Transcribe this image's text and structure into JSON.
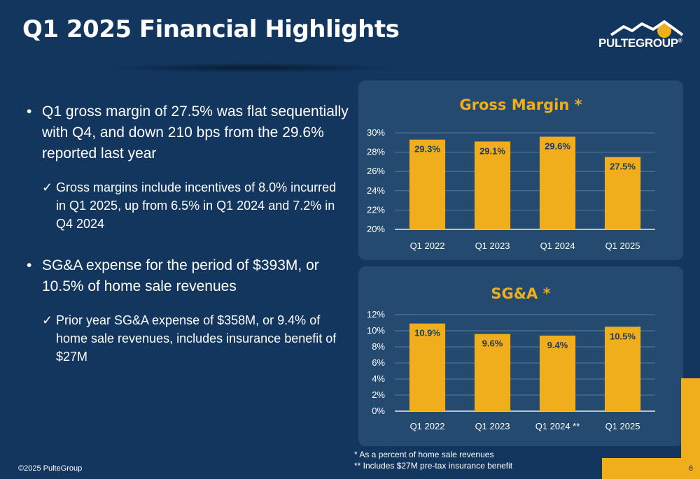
{
  "header": {
    "title": "Q1 2025 Financial Highlights",
    "logo_text": "PULTEGROUP",
    "logo_mark": "®"
  },
  "bullets": [
    {
      "text": "Q1 gross margin of 27.5% was flat sequentially with Q4, and down 210 bps from the 29.6% reported last year",
      "sub": "Gross margins include incentives of 8.0% incurred in Q1 2025, up from 6.5% in Q1 2024 and 7.2% in Q4 2024"
    },
    {
      "text": "SG&A expense for the period of $393M, or 10.5% of home sale revenues",
      "sub": "Prior year SG&A expense of $358M, or 9.4% of home sale revenues, includes insurance benefit of $27M"
    }
  ],
  "bullet_glyph": "•",
  "check_glyph": "✓",
  "chart_data": [
    {
      "type": "bar",
      "title": "Gross Margin *",
      "categories": [
        "Q1 2022",
        "Q1 2023",
        "Q1 2024",
        "Q1 2025"
      ],
      "values": [
        29.3,
        29.1,
        29.6,
        27.5
      ],
      "data_labels": [
        "29.3%",
        "29.1%",
        "29.6%",
        "27.5%"
      ],
      "ylim": [
        20,
        30
      ],
      "yticks": [
        20,
        22,
        24,
        26,
        28,
        30
      ],
      "ytick_labels": [
        "20%",
        "22%",
        "24%",
        "26%",
        "28%",
        "30%"
      ],
      "grid": true,
      "bar_color": "#f0ae1c"
    },
    {
      "type": "bar",
      "title": "SG&A *",
      "categories": [
        "Q1 2022",
        "Q1 2023",
        "Q1 2024 **",
        "Q1 2025"
      ],
      "values": [
        10.9,
        9.6,
        9.4,
        10.5
      ],
      "data_labels": [
        "10.9%",
        "9.6%",
        "9.4%",
        "10.5%"
      ],
      "ylim": [
        0,
        12
      ],
      "yticks": [
        0,
        2,
        4,
        6,
        8,
        10,
        12
      ],
      "ytick_labels": [
        "0%",
        "2%",
        "4%",
        "6%",
        "8%",
        "10%",
        "12%"
      ],
      "grid": true,
      "bar_color": "#f0ae1c"
    }
  ],
  "footnotes": [
    "* As a percent of home sale revenues",
    "** Includes $27M pre-tax insurance benefit"
  ],
  "footer": {
    "copyright": "©2025 PulteGroup",
    "page_number": "6"
  },
  "colors": {
    "background": "#12365e",
    "panel": "#244a70",
    "accent": "#f0ae1c"
  }
}
